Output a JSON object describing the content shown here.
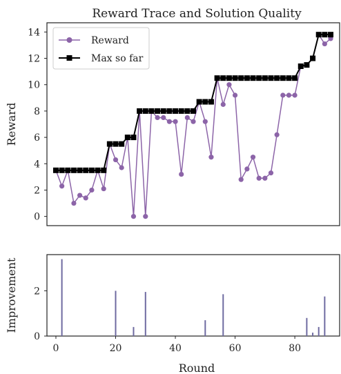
{
  "chart_data": [
    {
      "type": "line",
      "title": "Reward Trace and Solution Quality",
      "xlabel": "",
      "ylabel": "Reward",
      "xlim": [
        -3,
        95
      ],
      "ylim": [
        -0.7,
        14.7
      ],
      "yticks": [
        0,
        2,
        4,
        6,
        8,
        10,
        12,
        14
      ],
      "legend_position": "top-left",
      "grid": false,
      "colors": {
        "reward": "#8c64a8",
        "max": "#000000"
      },
      "series": [
        {
          "name": "Reward",
          "marker": "circle",
          "x": [
            0,
            2,
            4,
            6,
            8,
            10,
            12,
            14,
            16,
            18,
            20,
            22,
            24,
            26,
            28,
            30,
            32,
            34,
            36,
            38,
            40,
            42,
            44,
            46,
            48,
            50,
            52,
            54,
            56,
            58,
            60,
            62,
            64,
            66,
            68,
            70,
            72,
            74,
            76,
            78,
            80,
            82,
            84,
            86,
            88,
            90,
            92
          ],
          "values": [
            3.5,
            2.3,
            3.5,
            1.0,
            1.6,
            1.4,
            2.0,
            3.5,
            2.1,
            5.5,
            4.3,
            3.7,
            6.0,
            0.0,
            8.0,
            0.0,
            8.0,
            7.5,
            7.5,
            7.2,
            7.2,
            3.2,
            7.5,
            7.2,
            8.7,
            7.2,
            4.5,
            10.5,
            8.5,
            10.0,
            9.2,
            2.8,
            3.6,
            4.5,
            2.9,
            2.9,
            3.3,
            6.2,
            9.2,
            9.2,
            9.2,
            11.4,
            11.5,
            12.0,
            13.8,
            13.1,
            13.5
          ]
        },
        {
          "name": "Max so far",
          "marker": "square",
          "x": [
            0,
            2,
            4,
            6,
            8,
            10,
            12,
            14,
            16,
            18,
            20,
            22,
            24,
            26,
            28,
            30,
            32,
            34,
            36,
            38,
            40,
            42,
            44,
            46,
            48,
            50,
            52,
            54,
            56,
            58,
            60,
            62,
            64,
            66,
            68,
            70,
            72,
            74,
            76,
            78,
            80,
            82,
            84,
            86,
            88,
            90,
            92
          ],
          "values": [
            3.5,
            3.5,
            3.5,
            3.5,
            3.5,
            3.5,
            3.5,
            3.5,
            3.5,
            5.5,
            5.5,
            5.5,
            6.0,
            6.0,
            8.0,
            8.0,
            8.0,
            8.0,
            8.0,
            8.0,
            8.0,
            8.0,
            8.0,
            8.0,
            8.7,
            8.7,
            8.7,
            10.5,
            10.5,
            10.5,
            10.5,
            10.5,
            10.5,
            10.5,
            10.5,
            10.5,
            10.5,
            10.5,
            10.5,
            10.5,
            10.5,
            11.4,
            11.5,
            12.0,
            13.8,
            13.8,
            13.8
          ]
        }
      ]
    },
    {
      "type": "bar",
      "title": "",
      "xlabel": "Round",
      "ylabel": "Improvement",
      "xlim": [
        -3,
        95
      ],
      "ylim": [
        0,
        3.6
      ],
      "xticks": [
        0,
        20,
        40,
        60,
        80
      ],
      "yticks": [
        0,
        2
      ],
      "colors": {
        "bar": "#6e6aa0"
      },
      "x": [
        2,
        20,
        26,
        30,
        50,
        56,
        84,
        86,
        88,
        90
      ],
      "values": [
        3.4,
        2.0,
        0.4,
        1.95,
        0.7,
        1.85,
        0.8,
        0.15,
        0.4,
        1.75
      ]
    }
  ]
}
